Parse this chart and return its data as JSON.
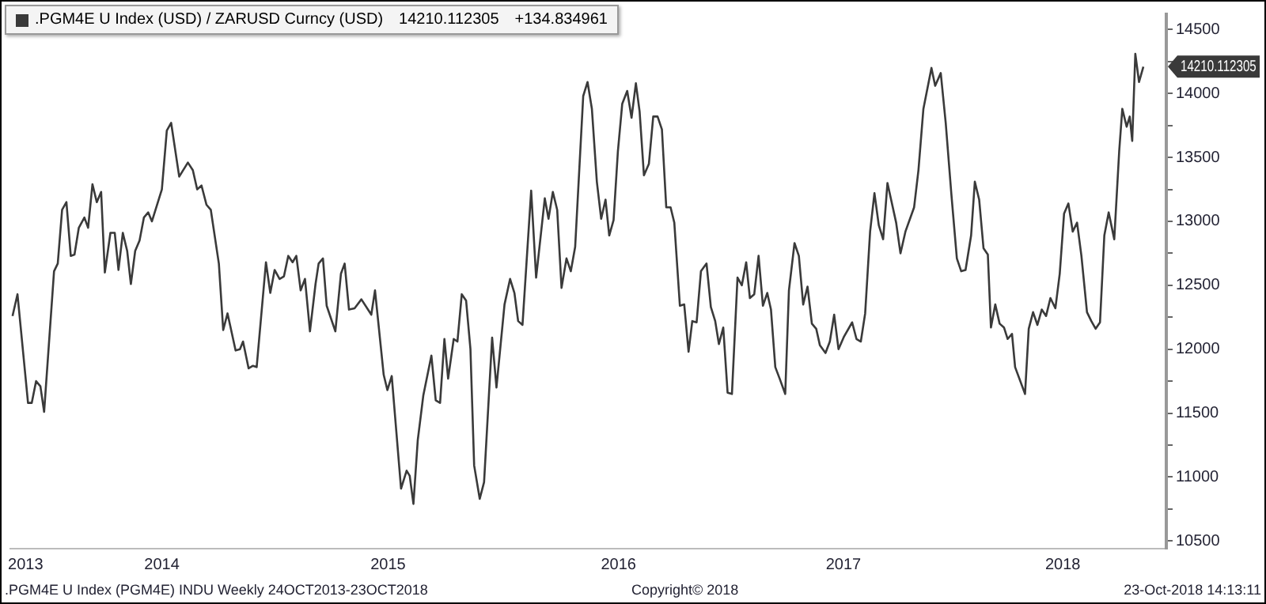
{
  "chart_data": {
    "type": "line",
    "legend": "top left",
    "grid": false,
    "marker": "none",
    "line_style": "solid",
    "xlim": [
      "2013-10-21",
      "2018-11-29"
    ],
    "xticks": [
      {
        "value": "2013-11-14",
        "label": "2013"
      },
      {
        "value": "2014-06-22",
        "label": "2014"
      },
      {
        "value": "2015-06-22",
        "label": "2015"
      },
      {
        "value": "2016-06-28",
        "label": "2016"
      },
      {
        "value": "2017-06-26",
        "label": "2017"
      },
      {
        "value": "2018-06-15",
        "label": "2018"
      }
    ],
    "ylim": [
      10440,
      14620
    ],
    "yticks": [
      10500,
      {
        "value": 10750,
        "label": null
      },
      11000,
      {
        "value": 11250,
        "label": null
      },
      11500,
      {
        "value": 11750,
        "label": null
      },
      12000,
      {
        "value": 12250,
        "label": null
      },
      12500,
      {
        "value": 12750,
        "label": null
      },
      13000,
      {
        "value": 13250,
        "label": null
      },
      13500,
      {
        "value": 13750,
        "label": null
      },
      14000,
      {
        "value": 14250,
        "label": null
      },
      14500
    ],
    "annotations": [
      "14210.112305",
      "+134.834961",
      ".PGM4E U Index (PGM4E) INDU  Weekly 24OCT2013-23OCT2018",
      "Copyright© 2018",
      "23-Oct-2018 14:13:11",
      {
        "text": "14210.112305",
        "x": "2018-10-23",
        "y": 14210.112305
      }
    ],
    "series": [
      {
        "name": ".PGM4E U Index (USD) / ZARUSD Curncy (USD)",
        "color": "#3a3a3a",
        "x": [
          "2013-10-24",
          "2013-11-01",
          "2013-11-18",
          "2013-11-24",
          "2013-12-01",
          "2013-12-08",
          "2013-12-14",
          "2013-12-30",
          "2014-01-05",
          "2014-01-12",
          "2014-01-19",
          "2014-01-26",
          "2014-02-01",
          "2014-02-08",
          "2014-02-17",
          "2014-02-23",
          "2014-03-02",
          "2014-03-09",
          "2014-03-16",
          "2014-03-22",
          "2014-03-31",
          "2014-04-07",
          "2014-04-13",
          "2014-04-20",
          "2014-04-27",
          "2014-05-03",
          "2014-05-10",
          "2014-05-17",
          "2014-05-24",
          "2014-05-31",
          "2014-06-06",
          "2014-06-22",
          "2014-06-30",
          "2014-07-07",
          "2014-07-20",
          "2014-08-03",
          "2014-08-11",
          "2014-08-18",
          "2014-08-25",
          "2014-09-02",
          "2014-09-09",
          "2014-09-22",
          "2014-09-29",
          "2014-10-06",
          "2014-10-19",
          "2014-10-26",
          "2014-10-31",
          "2014-11-09",
          "2014-11-16",
          "2014-11-22",
          "2014-12-07",
          "2014-12-14",
          "2014-12-21",
          "2014-12-29",
          "2015-01-05",
          "2015-01-12",
          "2015-01-19",
          "2015-01-25",
          "2015-02-01",
          "2015-02-08",
          "2015-02-16",
          "2015-02-25",
          "2015-03-02",
          "2015-03-09",
          "2015-03-15",
          "2015-03-29",
          "2015-04-07",
          "2015-04-13",
          "2015-04-20",
          "2015-04-29",
          "2015-05-10",
          "2015-05-26",
          "2015-06-01",
          "2015-06-15",
          "2015-06-21",
          "2015-06-28",
          "2015-07-13",
          "2015-07-22",
          "2015-07-27",
          "2015-08-02",
          "2015-08-09",
          "2015-08-18",
          "2015-08-31",
          "2015-09-07",
          "2015-09-14",
          "2015-09-21",
          "2015-09-27",
          "2015-10-06",
          "2015-10-12",
          "2015-10-19",
          "2015-10-26",
          "2015-11-02",
          "2015-11-08",
          "2015-11-17",
          "2015-11-24",
          "2015-12-07",
          "2015-12-14",
          "2015-12-27",
          "2016-01-05",
          "2016-01-12",
          "2016-01-18",
          "2016-01-25",
          "2016-02-08",
          "2016-02-16",
          "2016-03-01",
          "2016-03-07",
          "2016-03-14",
          "2016-03-21",
          "2016-03-28",
          "2016-04-05",
          "2016-04-12",
          "2016-04-19",
          "2016-05-02",
          "2016-05-09",
          "2016-05-16",
          "2016-05-24",
          "2016-05-31",
          "2016-06-07",
          "2016-06-13",
          "2016-06-20",
          "2016-06-27",
          "2016-07-04",
          "2016-07-12",
          "2016-07-19",
          "2016-07-26",
          "2016-08-01",
          "2016-08-08",
          "2016-08-16",
          "2016-08-23",
          "2016-08-30",
          "2016-09-06",
          "2016-09-13",
          "2016-09-20",
          "2016-09-26",
          "2016-10-05",
          "2016-10-12",
          "2016-10-19",
          "2016-10-25",
          "2016-11-01",
          "2016-11-08",
          "2016-11-17",
          "2016-11-24",
          "2016-12-01",
          "2016-12-07",
          "2016-12-14",
          "2016-12-21",
          "2016-12-28",
          "2017-01-06",
          "2017-01-13",
          "2017-01-20",
          "2017-01-26",
          "2017-02-02",
          "2017-02-09",
          "2017-02-16",
          "2017-02-23",
          "2017-03-01",
          "2017-03-08",
          "2017-03-15",
          "2017-03-24",
          "2017-03-30",
          "2017-04-08",
          "2017-04-15",
          "2017-04-22",
          "2017-04-29",
          "2017-05-06",
          "2017-05-13",
          "2017-05-19",
          "2017-05-28",
          "2017-06-04",
          "2017-06-11",
          "2017-06-18",
          "2017-06-27",
          "2017-07-10",
          "2017-07-17",
          "2017-07-24",
          "2017-07-31",
          "2017-08-08",
          "2017-08-15",
          "2017-08-22",
          "2017-08-29",
          "2017-09-05",
          "2017-09-19",
          "2017-09-26",
          "2017-10-04",
          "2017-10-18",
          "2017-10-25",
          "2017-11-02",
          "2017-11-15",
          "2017-11-21",
          "2017-11-30",
          "2017-12-08",
          "2017-12-17",
          "2017-12-26",
          "2018-01-02",
          "2018-01-09",
          "2018-01-18",
          "2018-01-24",
          "2018-01-31",
          "2018-02-07",
          "2018-02-14",
          "2018-02-19",
          "2018-02-26",
          "2018-03-05",
          "2018-03-12",
          "2018-03-18",
          "2018-03-25",
          "2018-03-30",
          "2018-04-15",
          "2018-04-21",
          "2018-04-28",
          "2018-05-05",
          "2018-05-12",
          "2018-05-19",
          "2018-05-26",
          "2018-06-03",
          "2018-06-10",
          "2018-06-17",
          "2018-06-24",
          "2018-07-01",
          "2018-07-08",
          "2018-07-15",
          "2018-07-24",
          "2018-07-31",
          "2018-08-07",
          "2018-08-14",
          "2018-08-21",
          "2018-08-28",
          "2018-09-06",
          "2018-09-14",
          "2018-09-19",
          "2018-09-26",
          "2018-10-01",
          "2018-10-05",
          "2018-10-10",
          "2018-10-16",
          "2018-10-23"
        ],
        "values": [
          12260,
          12430,
          11580,
          11580,
          11750,
          11710,
          11510,
          12610,
          12670,
          13090,
          13150,
          12730,
          12740,
          12950,
          13030,
          12950,
          13290,
          13150,
          13230,
          12600,
          12910,
          12910,
          12620,
          12910,
          12770,
          12510,
          12770,
          12850,
          13030,
          13070,
          13000,
          13250,
          13710,
          13770,
          13350,
          13460,
          13400,
          13250,
          13280,
          13130,
          13090,
          12670,
          12150,
          12280,
          11990,
          12000,
          12060,
          11850,
          11870,
          11860,
          12680,
          12440,
          12620,
          12550,
          12570,
          12730,
          12680,
          12730,
          12460,
          12550,
          12140,
          12510,
          12670,
          12710,
          12340,
          12140,
          12590,
          12670,
          12310,
          12320,
          12390,
          12270,
          12460,
          11800,
          11680,
          11790,
          10910,
          11050,
          11010,
          10790,
          11290,
          11640,
          11950,
          11600,
          11580,
          12080,
          11770,
          12080,
          12060,
          12430,
          12380,
          12000,
          11090,
          10830,
          10960,
          12090,
          11700,
          12350,
          12550,
          12440,
          12220,
          12190,
          13240,
          12560,
          13180,
          13020,
          13230,
          13090,
          12480,
          12710,
          12610,
          12800,
          13980,
          14090,
          13880,
          13310,
          13020,
          13170,
          12890,
          13010,
          13550,
          13920,
          14020,
          13810,
          14080,
          13860,
          13360,
          13450,
          13820,
          13820,
          13720,
          13110,
          13110,
          12990,
          12340,
          12350,
          11980,
          12220,
          12210,
          12610,
          12670,
          12330,
          12220,
          12040,
          12170,
          11660,
          11650,
          12560,
          12500,
          12680,
          12400,
          12430,
          12730,
          12340,
          12440,
          12310,
          11860,
          11770,
          11650,
          12460,
          12830,
          12730,
          12350,
          12490,
          12200,
          12160,
          12030,
          11970,
          12060,
          12270,
          12000,
          12100,
          12210,
          12080,
          12060,
          12280,
          12920,
          13220,
          12970,
          12860,
          13300,
          12990,
          12750,
          12920,
          13110,
          13400,
          13880,
          14200,
          14060,
          14160,
          13770,
          13220,
          12710,
          12610,
          12620,
          12890,
          13310,
          13170,
          12790,
          12740,
          12170,
          12350,
          12200,
          12170,
          12080,
          12120,
          11860,
          11650,
          12160,
          12290,
          12190,
          12310,
          12260,
          12400,
          12320,
          12590,
          13060,
          13140,
          12920,
          12990,
          12730,
          12290,
          12220,
          12160,
          12210,
          12890,
          13070,
          12860,
          13550,
          13880,
          13740,
          13820,
          13630,
          14310,
          14090,
          14210.112305
        ]
      }
    ]
  }
}
